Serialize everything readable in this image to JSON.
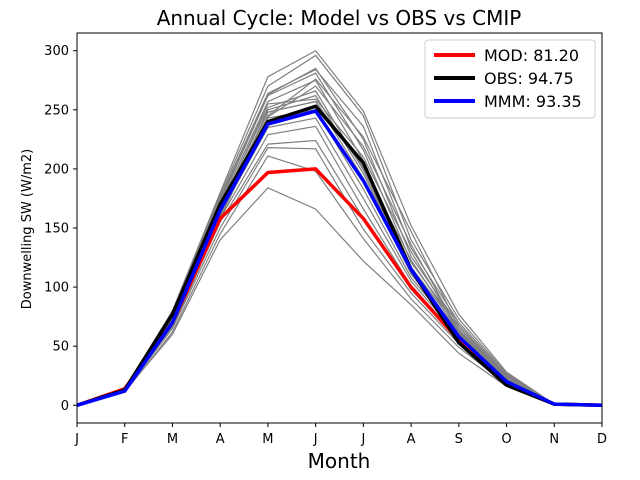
{
  "chart_data": {
    "type": "line",
    "title": "Annual Cycle: Model vs OBS vs CMIP",
    "xlabel": "Month",
    "ylabel": "Downwelling SW (W/m2)",
    "categories": [
      "J",
      "F",
      "M",
      "A",
      "M",
      "J",
      "J",
      "A",
      "S",
      "O",
      "N",
      "D"
    ],
    "ylim": [
      -15,
      315
    ],
    "yticks": [
      0,
      50,
      100,
      150,
      200,
      250,
      300
    ],
    "grid": false,
    "legend_position": "top-right",
    "colors": {
      "ensemble": "#808080",
      "mod": "#ff0000",
      "obs": "#000000",
      "mmm": "#0000ff",
      "axis": "#000000",
      "legend_border": "#cccccc"
    },
    "highlighted_series": [
      {
        "key": "mod",
        "legend_label": "MOD: 81.20",
        "color": "#ff0000",
        "values": [
          0,
          14,
          70,
          158,
          197,
          200,
          158,
          100,
          55,
          18,
          1,
          0
        ]
      },
      {
        "key": "obs",
        "legend_label": "OBS: 94.75",
        "color": "#000000",
        "values": [
          0,
          13,
          77,
          170,
          240,
          253,
          205,
          115,
          53,
          17,
          1,
          0
        ]
      },
      {
        "key": "mmm",
        "legend_label": "MMM: 93.35",
        "color": "#0000ff",
        "values": [
          0,
          12,
          70,
          165,
          238,
          249,
          190,
          115,
          58,
          20,
          1,
          0
        ]
      }
    ],
    "ensemble_series": [
      {
        "values": [
          0,
          12,
          60,
          140,
          184,
          166,
          122,
          85,
          44,
          16,
          1,
          0
        ]
      },
      {
        "values": [
          0,
          11,
          62,
          145,
          211,
          198,
          141,
          90,
          49,
          18,
          1,
          0
        ]
      },
      {
        "values": [
          0,
          12,
          65,
          150,
          218,
          217,
          149,
          95,
          52,
          19,
          1,
          0
        ]
      },
      {
        "values": [
          0,
          12,
          66,
          155,
          221,
          224,
          158,
          98,
          55,
          20,
          1,
          0
        ]
      },
      {
        "values": [
          0,
          13,
          68,
          158,
          229,
          236,
          166,
          101,
          57,
          21,
          1,
          0
        ]
      },
      {
        "values": [
          0,
          13,
          70,
          162,
          235,
          243,
          175,
          105,
          58,
          22,
          1,
          0
        ]
      },
      {
        "values": [
          0,
          12,
          70,
          164,
          243,
          250,
          183,
          108,
          60,
          22,
          1,
          0
        ]
      },
      {
        "values": [
          0,
          13,
          72,
          166,
          248,
          257,
          192,
          111,
          61,
          23,
          1,
          0
        ]
      },
      {
        "values": [
          0,
          12,
          72,
          168,
          252,
          266,
          199,
          114,
          62,
          23,
          1,
          0
        ]
      },
      {
        "values": [
          0,
          13,
          74,
          170,
          257,
          275,
          207,
          117,
          64,
          24,
          1,
          0
        ]
      },
      {
        "values": [
          0,
          12,
          74,
          172,
          262,
          281,
          216,
          121,
          66,
          25,
          1,
          0
        ]
      },
      {
        "values": [
          0,
          13,
          76,
          174,
          263,
          285,
          225,
          126,
          68,
          25,
          1,
          0
        ]
      },
      {
        "values": [
          0,
          13,
          77,
          176,
          264,
          284,
          236,
          133,
          70,
          26,
          1,
          0
        ]
      },
      {
        "values": [
          0,
          14,
          78,
          178,
          270,
          296,
          245,
          140,
          73,
          27,
          1,
          0
        ]
      },
      {
        "values": [
          0,
          14,
          80,
          180,
          278,
          300,
          249,
          152,
          77,
          28,
          1,
          0
        ]
      },
      {
        "values": [
          0,
          12,
          68,
          160,
          250,
          262,
          196,
          113,
          59,
          21,
          1,
          0
        ]
      },
      {
        "values": [
          0,
          13,
          71,
          163,
          248,
          257,
          201,
          123,
          62,
          22,
          1,
          0
        ]
      },
      {
        "values": [
          0,
          12,
          69,
          166,
          255,
          259,
          210,
          130,
          63,
          23,
          1,
          0
        ]
      },
      {
        "values": [
          0,
          13,
          73,
          162,
          245,
          276,
          227,
          147,
          66,
          24,
          1,
          0
        ]
      },
      {
        "values": [
          0,
          12,
          67,
          158,
          244,
          270,
          219,
          136,
          63,
          21,
          1,
          0
        ]
      }
    ]
  }
}
